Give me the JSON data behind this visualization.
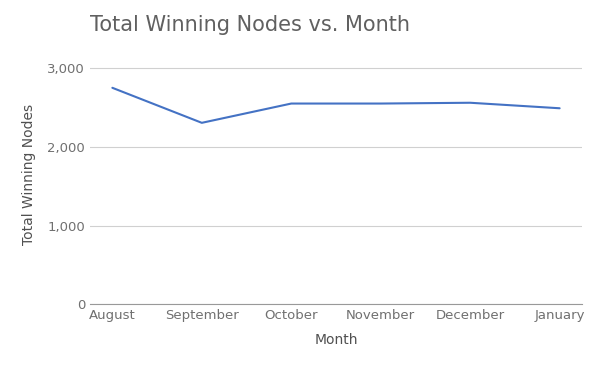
{
  "title": "Total Winning Nodes vs. Month",
  "xlabel": "Month",
  "ylabel": "Total Winning Nodes",
  "categories": [
    "August",
    "September",
    "October",
    "November",
    "December",
    "January"
  ],
  "values": [
    2750,
    2305,
    2550,
    2550,
    2560,
    2490
  ],
  "line_color": "#4472C4",
  "background_color": "#ffffff",
  "grid_color": "#d0d0d0",
  "ylim": [
    0,
    3300
  ],
  "yticks": [
    0,
    1000,
    2000,
    3000
  ],
  "title_fontsize": 15,
  "label_fontsize": 10,
  "tick_fontsize": 9.5,
  "title_color": "#606060",
  "axis_label_color": "#505050",
  "tick_label_color": "#707070"
}
